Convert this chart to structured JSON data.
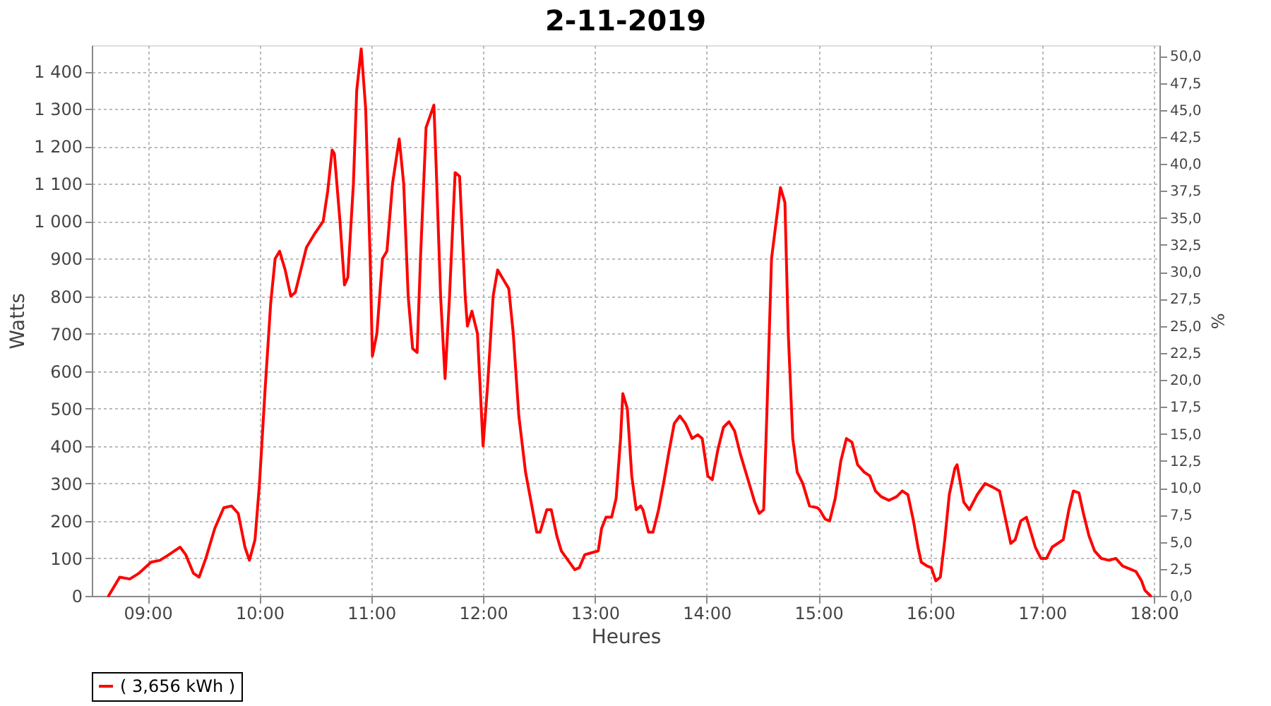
{
  "chart_data": {
    "type": "line",
    "title": "2-11-2019",
    "xlabel": "Heures",
    "ylabel": "Watts",
    "y2label": "%",
    "series": [
      {
        "name": "( 3,656 kWh )",
        "color": "#ff0000",
        "x": [
          8.65,
          8.75,
          8.84,
          8.92,
          9.03,
          9.11,
          9.19,
          9.29,
          9.34,
          9.41,
          9.46,
          9.52,
          9.6,
          9.68,
          9.75,
          9.81,
          9.87,
          9.91,
          9.96,
          10.0,
          10.05,
          10.1,
          10.14,
          10.18,
          10.23,
          10.28,
          10.32,
          10.37,
          10.42,
          10.49,
          10.57,
          10.61,
          10.65,
          10.67,
          10.72,
          10.76,
          10.79,
          10.84,
          10.87,
          10.91,
          10.95,
          10.99,
          11.01,
          11.05,
          11.1,
          11.14,
          11.19,
          11.25,
          11.29,
          11.33,
          11.37,
          11.41,
          11.44,
          11.49,
          11.56,
          11.58,
          11.62,
          11.66,
          11.7,
          11.75,
          11.79,
          11.84,
          11.86,
          11.9,
          11.95,
          12.0,
          12.04,
          12.09,
          12.13,
          12.19,
          12.23,
          12.27,
          12.32,
          12.38,
          12.43,
          12.48,
          12.51,
          12.57,
          12.61,
          12.66,
          12.7,
          12.76,
          12.82,
          12.86,
          12.91,
          12.97,
          13.03,
          13.06,
          13.1,
          13.15,
          13.19,
          13.23,
          13.25,
          13.29,
          13.33,
          13.37,
          13.41,
          13.43,
          13.48,
          13.52,
          13.57,
          13.62,
          13.66,
          13.71,
          13.76,
          13.81,
          13.87,
          13.92,
          13.96,
          14.01,
          14.05,
          14.1,
          14.15,
          14.2,
          14.25,
          14.3,
          14.37,
          14.43,
          14.47,
          14.51,
          14.54,
          14.58,
          14.66,
          14.7,
          14.73,
          14.77,
          14.81,
          14.86,
          14.92,
          14.99,
          15.01,
          15.06,
          15.1,
          15.15,
          15.2,
          15.25,
          15.3,
          15.35,
          15.41,
          15.46,
          15.51,
          15.56,
          15.63,
          15.7,
          15.75,
          15.8,
          15.85,
          15.89,
          15.92,
          15.97,
          16.01,
          16.05,
          16.09,
          16.13,
          16.17,
          16.22,
          16.24,
          16.3,
          16.35,
          16.42,
          16.49,
          16.56,
          16.62,
          16.67,
          16.72,
          16.76,
          16.81,
          16.86,
          16.9,
          16.94,
          16.99,
          17.04,
          17.09,
          17.14,
          17.19,
          17.24,
          17.28,
          17.33,
          17.37,
          17.42,
          17.47,
          17.53,
          17.6,
          17.66,
          17.72,
          17.8,
          17.84,
          17.89,
          17.92,
          17.97
        ],
        "values": [
          0,
          50,
          45,
          60,
          90,
          95,
          110,
          130,
          110,
          60,
          50,
          100,
          180,
          235,
          240,
          220,
          130,
          95,
          150,
          300,
          550,
          780,
          900,
          920,
          870,
          800,
          810,
          870,
          930,
          965,
          1000,
          1080,
          1190,
          1180,
          1000,
          830,
          850,
          1100,
          1350,
          1460,
          1300,
          900,
          640,
          700,
          900,
          920,
          1100,
          1220,
          1100,
          800,
          660,
          650,
          900,
          1250,
          1310,
          1150,
          800,
          580,
          800,
          1130,
          1120,
          800,
          720,
          760,
          700,
          400,
          560,
          800,
          870,
          840,
          820,
          700,
          480,
          330,
          250,
          170,
          170,
          230,
          230,
          160,
          120,
          95,
          70,
          75,
          110,
          115,
          120,
          180,
          210,
          210,
          260,
          420,
          540,
          500,
          320,
          230,
          240,
          230,
          170,
          170,
          230,
          310,
          380,
          460,
          480,
          460,
          420,
          430,
          420,
          320,
          310,
          390,
          450,
          465,
          440,
          380,
          310,
          250,
          220,
          230,
          500,
          900,
          1090,
          1050,
          700,
          420,
          330,
          300,
          240,
          235,
          230,
          205,
          200,
          260,
          360,
          420,
          410,
          350,
          330,
          320,
          280,
          265,
          255,
          265,
          280,
          270,
          200,
          130,
          90,
          80,
          75,
          40,
          50,
          150,
          270,
          340,
          350,
          250,
          230,
          270,
          300,
          290,
          280,
          210,
          140,
          150,
          200,
          210,
          170,
          130,
          100,
          100,
          130,
          140,
          150,
          230,
          280,
          275,
          220,
          160,
          120,
          100,
          95,
          100,
          80,
          70,
          65,
          40,
          15,
          0
        ]
      }
    ],
    "xlim": [
      8.5,
      18.05
    ],
    "xticks": [
      {
        "value": 9,
        "label": "09:00"
      },
      {
        "value": 10,
        "label": "10:00"
      },
      {
        "value": 11,
        "label": "11:00"
      },
      {
        "value": 12,
        "label": "12:00"
      },
      {
        "value": 13,
        "label": "13:00"
      },
      {
        "value": 14,
        "label": "14:00"
      },
      {
        "value": 15,
        "label": "15:00"
      },
      {
        "value": 16,
        "label": "16:00"
      },
      {
        "value": 17,
        "label": "17:00"
      },
      {
        "value": 18,
        "label": "18:00"
      }
    ],
    "ylim": [
      0,
      1470
    ],
    "yticks": [
      0,
      100,
      200,
      300,
      400,
      500,
      600,
      700,
      800,
      900,
      {
        "value": 1000,
        "label": "1 000"
      },
      {
        "value": 1100,
        "label": "1 100"
      },
      {
        "value": 1200,
        "label": "1 200"
      },
      {
        "value": 1300,
        "label": "1 300"
      },
      {
        "value": 1400,
        "label": "1 400"
      }
    ],
    "y2lim": [
      0,
      51
    ],
    "y2ticks": [
      {
        "value": 0,
        "label": "0,0"
      },
      {
        "value": 2.5,
        "label": "2,5"
      },
      {
        "value": 5,
        "label": "5,0"
      },
      {
        "value": 7.5,
        "label": "7,5"
      },
      {
        "value": 10,
        "label": "10,0"
      },
      {
        "value": 12.5,
        "label": "12,5"
      },
      {
        "value": 15,
        "label": "15,0"
      },
      {
        "value": 17.5,
        "label": "17,5"
      },
      {
        "value": 20,
        "label": "20,0"
      },
      {
        "value": 22.5,
        "label": "22,5"
      },
      {
        "value": 25,
        "label": "25,0"
      },
      {
        "value": 27.5,
        "label": "27,5"
      },
      {
        "value": 30,
        "label": "30,0"
      },
      {
        "value": 32.5,
        "label": "32,5"
      },
      {
        "value": 35,
        "label": "35,0"
      },
      {
        "value": 37.5,
        "label": "37,5"
      },
      {
        "value": 40,
        "label": "40,0"
      },
      {
        "value": 42.5,
        "label": "42,5"
      },
      {
        "value": 45,
        "label": "45,0"
      },
      {
        "value": 47.5,
        "label": "47,5"
      },
      {
        "value": 50,
        "label": "50,0"
      }
    ],
    "grid": true,
    "legend": "bottom",
    "marker": "none",
    "line_style": "solid"
  }
}
